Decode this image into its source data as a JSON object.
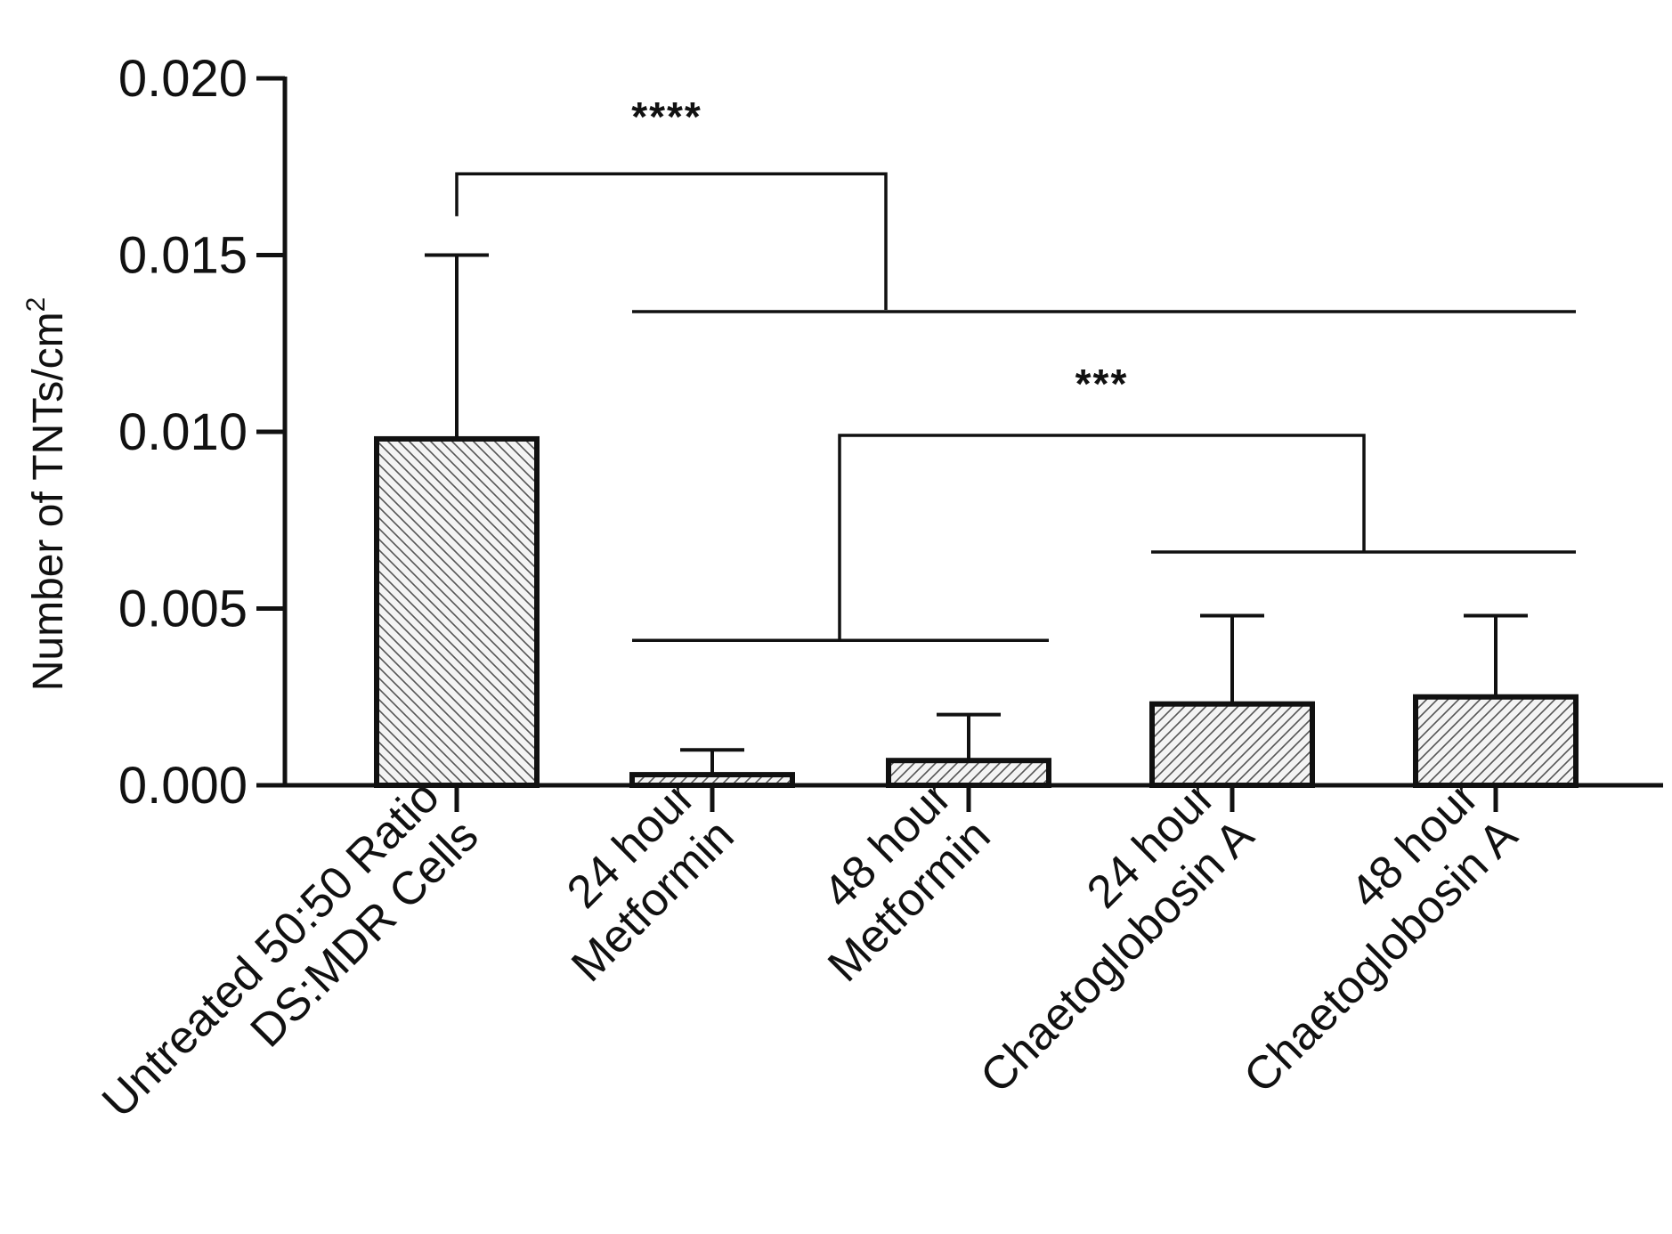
{
  "chart_data": {
    "type": "bar",
    "title": "",
    "xlabel": "",
    "ylabel": "Number of TNTs/cm",
    "ylabel_superscript": "2",
    "ylim": [
      0,
      0.02
    ],
    "yticks": [
      "0.000",
      "0.005",
      "0.010",
      "0.015",
      "0.020"
    ],
    "ytick_values": [
      0,
      0.005,
      0.01,
      0.015,
      0.02
    ],
    "categories": [
      [
        "Untreated 50:50 Ratio",
        "DS:MDR Cells"
      ],
      [
        "24 hour",
        "Metformin"
      ],
      [
        "48 hour",
        "Metformin"
      ],
      [
        "24 hour",
        "Chaetoglobosin A"
      ],
      [
        "48 hour",
        "Chaetoglobosin A"
      ]
    ],
    "values": [
      0.0098,
      0.0003,
      0.0007,
      0.0023,
      0.0025
    ],
    "error_upper": [
      0.015,
      0.001,
      0.002,
      0.0048,
      0.0048
    ],
    "significance": [
      {
        "label": "****",
        "comparison": "Untreated vs all treatments",
        "left_group": [
          0
        ],
        "right_group": [
          1,
          2,
          3,
          4
        ],
        "bracket_value": 0.0173,
        "right_line_value": 0.0134
      },
      {
        "label": "***",
        "comparison": "Metformin vs Chaetoglobosin A",
        "left_group": [
          1,
          2
        ],
        "right_group": [
          3,
          4
        ],
        "bracket_value": 0.0099,
        "left_line_value": 0.0041,
        "right_line_value": 0.0066
      }
    ],
    "colors": {
      "bar_stroke": "#111111",
      "hatch": "#444444",
      "fill": "#f4f4f4"
    }
  }
}
